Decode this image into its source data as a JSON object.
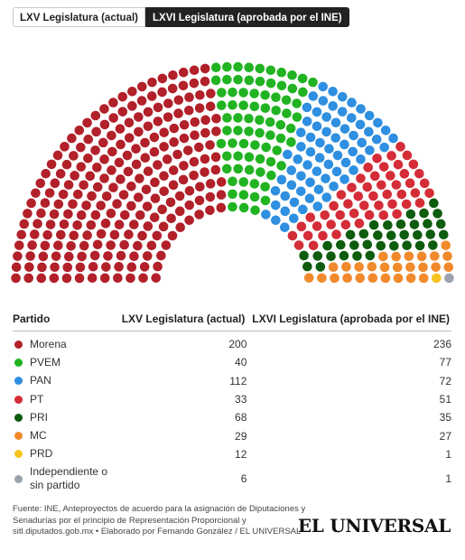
{
  "tabs": [
    {
      "label": "LXV Legislatura (actual)",
      "active": false
    },
    {
      "label": "LXVI Legislatura (aprobada por el INE)",
      "active": true
    }
  ],
  "table": {
    "headers": [
      "Partido",
      "LXV Legislatura (actual)",
      "LXVI Legislatura (aprobada por el INE)"
    ]
  },
  "chart_data": {
    "type": "parliament",
    "displayed_series": "LXVI Legislatura (aprobada por el INE)",
    "total_seats": 500,
    "parties": [
      {
        "name": "Morena",
        "color": "#b2202a",
        "lxv": 200,
        "lxvi": 236
      },
      {
        "name": "PVEM",
        "color": "#21b321",
        "lxv": 40,
        "lxvi": 77
      },
      {
        "name": "PAN",
        "color": "#2f8fe0",
        "lxv": 112,
        "lxvi": 72
      },
      {
        "name": "PT",
        "color": "#d42d37",
        "lxv": 33,
        "lxvi": 51
      },
      {
        "name": "PRI",
        "color": "#0e5c0e",
        "lxv": 68,
        "lxvi": 35
      },
      {
        "name": "MC",
        "color": "#f08a2c",
        "lxv": 29,
        "lxvi": 27
      },
      {
        "name": "PRD",
        "color": "#f7c51e",
        "lxv": 12,
        "lxvi": 1
      },
      {
        "name": "Independiente o sin partido",
        "color": "#9aa3ad",
        "lxv": 6,
        "lxvi": 1
      }
    ]
  },
  "source_text": "Fuente: INE, Anteproyectos de acuerdo para la asignación de Diputaciones y Senadurías por el principio de Representación Proporcional y sitl.diputados.gob.mx • Elaborado por Fernando González / EL UNIVERSAL",
  "logo_text": "EL UNIVERSAL"
}
